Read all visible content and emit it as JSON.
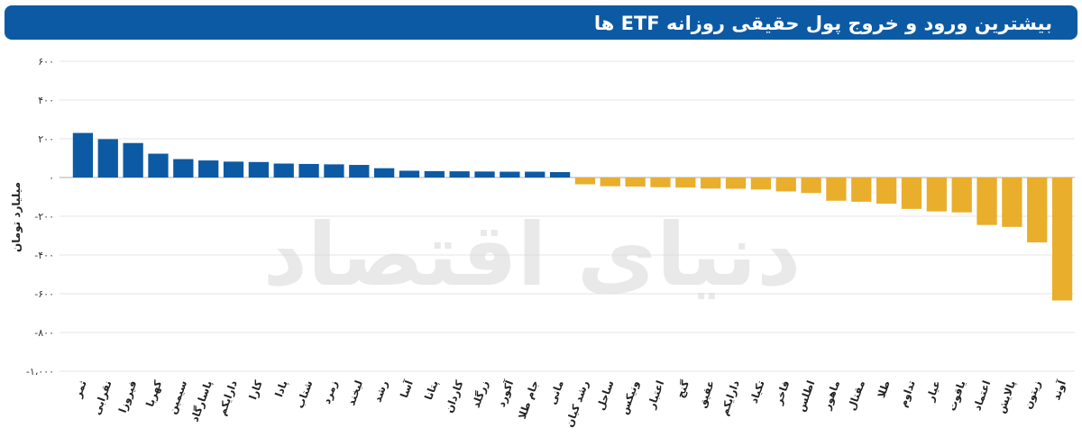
{
  "title": "بیشترین ورود و خروج پول حقیقی روزانه ETF ها",
  "watermark": "دنیای اقتصاد",
  "colors": {
    "positive": "#0d5aa4",
    "negative": "#e9ae2c",
    "header": "#0d5aa4",
    "grid": "#e6e6e6"
  },
  "chart_data": {
    "type": "bar",
    "ylabel": "میلیارد تومان",
    "ylim": [
      -1000,
      600
    ],
    "yticks": [
      600,
      400,
      200,
      0,
      -200,
      -400,
      -600,
      -800,
      -1000
    ],
    "ytick_labels": [
      "۶۰۰",
      "۴۰۰",
      "۲۰۰",
      "۰",
      "-۲۰۰",
      "-۴۰۰",
      "-۶۰۰",
      "-۸۰۰",
      "-۱،۰۰۰"
    ],
    "grid": true,
    "categories": [
      "ثمر",
      "نقرابی",
      "فیروزا",
      "کهربا",
      "سیمین",
      "پاسارگاد",
      "دارایکم",
      "کارا",
      "پادا",
      "شتاب",
      "زمرد",
      "لبخند",
      "رشد",
      "آسا",
      "پتانا",
      "کاردان",
      "زرگلد",
      "آکورد",
      "جام طلا",
      "مانی",
      "رشد کیان",
      "ساحل",
      "ونیکس",
      "اعتبار",
      "گنج",
      "عقیق",
      "دارایکم",
      "تکیاد",
      "فاخر",
      "اطلس",
      "ماهور",
      "مقتال",
      "طلا",
      "تداوم",
      "عیار",
      "یاقوت",
      "اعتماد",
      "پالایش",
      "زیتون",
      "آوند"
    ],
    "values": [
      230,
      198,
      178,
      123,
      95,
      88,
      82,
      80,
      72,
      70,
      68,
      65,
      48,
      35,
      33,
      32,
      31,
      30,
      30,
      28,
      -35,
      -45,
      -47,
      -50,
      -52,
      -57,
      -58,
      -62,
      -72,
      -80,
      -120,
      -125,
      -135,
      -162,
      -175,
      -180,
      -245,
      -255,
      -335,
      -635
    ]
  }
}
